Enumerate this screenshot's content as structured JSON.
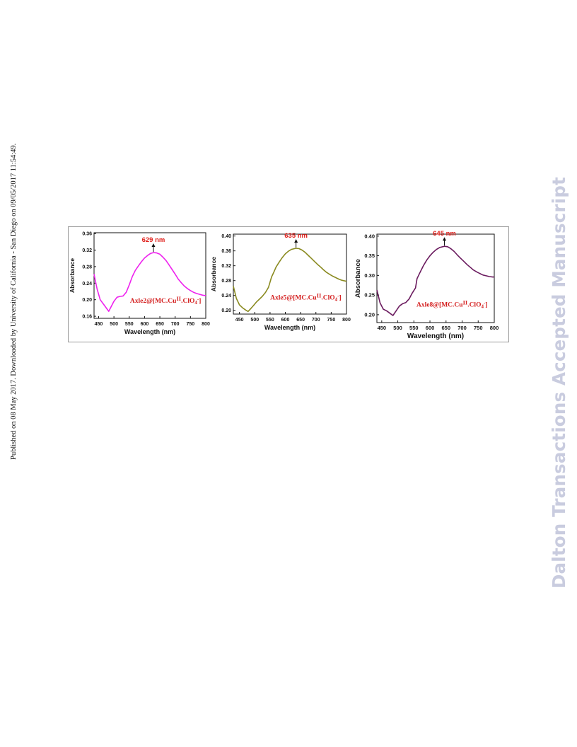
{
  "page": {
    "side_note": "Published on 08 May 2017. Downloaded by University of California - San Diego on 09/05/2017 11:54:49.",
    "watermark": "Dalton Transactions Accepted Manuscript"
  },
  "chart_data": [
    {
      "type": "line",
      "xlabel": "Wavelength (nm)",
      "ylabel": "Absorbance",
      "xlim": [
        435,
        800
      ],
      "ylim": [
        0.155,
        0.362
      ],
      "xticks": [
        450,
        500,
        550,
        600,
        650,
        700,
        750,
        800
      ],
      "yticks": [
        0.16,
        0.2,
        0.24,
        0.28,
        0.32,
        0.36
      ],
      "ytick_labels": [
        "0.16",
        "0.20",
        "0.24",
        "0.28",
        "0.32",
        "0.36"
      ],
      "peak_label": "629 nm",
      "peak_x": 629,
      "annotation": {
        "prefix": "Axle2@[MC.Cu",
        "sup": "II",
        "mid": ".ClO",
        "sub": "4",
        "sup2": "-",
        "suffix": "]"
      },
      "color": "#ee22ee",
      "series": [
        {
          "x": [
            435,
            445,
            455,
            465,
            475,
            483,
            490,
            500,
            510,
            520,
            530,
            540,
            550,
            560,
            570,
            580,
            590,
            600,
            610,
            620,
            629,
            640,
            650,
            660,
            670,
            680,
            690,
            700,
            710,
            720,
            730,
            740,
            750,
            760,
            770,
            780,
            790,
            800
          ],
          "y": [
            0.262,
            0.226,
            0.2,
            0.19,
            0.18,
            0.172,
            0.182,
            0.196,
            0.206,
            0.208,
            0.209,
            0.218,
            0.236,
            0.256,
            0.271,
            0.282,
            0.292,
            0.301,
            0.307,
            0.312,
            0.314,
            0.313,
            0.31,
            0.303,
            0.295,
            0.284,
            0.273,
            0.262,
            0.25,
            0.241,
            0.233,
            0.227,
            0.222,
            0.218,
            0.215,
            0.213,
            0.211,
            0.21
          ]
        }
      ]
    },
    {
      "type": "line",
      "xlabel": "Wavelength (nm)",
      "ylabel": "Absorbance",
      "xlim": [
        430,
        800
      ],
      "ylim": [
        0.19,
        0.405
      ],
      "xticks": [
        450,
        500,
        550,
        600,
        650,
        700,
        750,
        800
      ],
      "yticks": [
        0.2,
        0.24,
        0.28,
        0.32,
        0.36,
        0.4
      ],
      "ytick_labels": [
        "0.20",
        "0.24",
        "0.28",
        "0.32",
        "0.36",
        "0.40"
      ],
      "peak_label": "635 nm",
      "peak_x": 635,
      "annotation": {
        "prefix": "Axle5@[MC.Cu",
        "sup": "II",
        "mid": ".ClO",
        "sub": "4",
        "sup2": "-",
        "suffix": "]"
      },
      "color": "#8a8a20",
      "series": [
        {
          "x": [
            430,
            440,
            450,
            460,
            470,
            478,
            485,
            495,
            505,
            515,
            525,
            535,
            545,
            555,
            562,
            570,
            580,
            590,
            600,
            610,
            620,
            635,
            645,
            655,
            665,
            675,
            685,
            695,
            705,
            715,
            725,
            735,
            745,
            755,
            765,
            775,
            785,
            800
          ],
          "y": [
            0.265,
            0.232,
            0.215,
            0.207,
            0.201,
            0.197,
            0.203,
            0.212,
            0.222,
            0.23,
            0.238,
            0.248,
            0.262,
            0.29,
            0.302,
            0.317,
            0.33,
            0.342,
            0.352,
            0.359,
            0.364,
            0.367,
            0.366,
            0.362,
            0.356,
            0.348,
            0.34,
            0.332,
            0.324,
            0.317,
            0.309,
            0.302,
            0.297,
            0.292,
            0.288,
            0.284,
            0.281,
            0.278
          ]
        }
      ]
    },
    {
      "type": "line",
      "xlabel": "Wavelength (nm)",
      "ylabel": "Absorbance",
      "xlim": [
        435,
        800
      ],
      "ylim": [
        0.18,
        0.405
      ],
      "xticks": [
        450,
        500,
        550,
        600,
        650,
        700,
        750,
        800
      ],
      "yticks": [
        0.2,
        0.25,
        0.3,
        0.35,
        0.4
      ],
      "ytick_labels": [
        "0.20",
        "0.25",
        "0.30",
        "0.35",
        "0.40"
      ],
      "peak_label": "645 nm",
      "peak_x": 645,
      "annotation": {
        "prefix": "Axle8@[MC.Cu",
        "sup": "II",
        "mid": ".ClO",
        "sub": "4",
        "sup2": "-",
        "suffix": "]"
      },
      "color": "#6a1a5e",
      "series": [
        {
          "x": [
            435,
            445,
            455,
            465,
            475,
            485,
            495,
            505,
            515,
            525,
            535,
            545,
            555,
            560,
            570,
            580,
            590,
            600,
            610,
            620,
            630,
            645,
            655,
            665,
            675,
            685,
            695,
            705,
            715,
            725,
            735,
            745,
            755,
            765,
            775,
            785,
            795,
            800
          ],
          "y": [
            0.263,
            0.23,
            0.214,
            0.21,
            0.204,
            0.198,
            0.21,
            0.222,
            0.228,
            0.231,
            0.24,
            0.255,
            0.268,
            0.292,
            0.309,
            0.325,
            0.339,
            0.35,
            0.359,
            0.366,
            0.371,
            0.374,
            0.373,
            0.368,
            0.361,
            0.352,
            0.344,
            0.336,
            0.328,
            0.321,
            0.314,
            0.309,
            0.305,
            0.301,
            0.299,
            0.297,
            0.296,
            0.296
          ]
        }
      ]
    }
  ]
}
